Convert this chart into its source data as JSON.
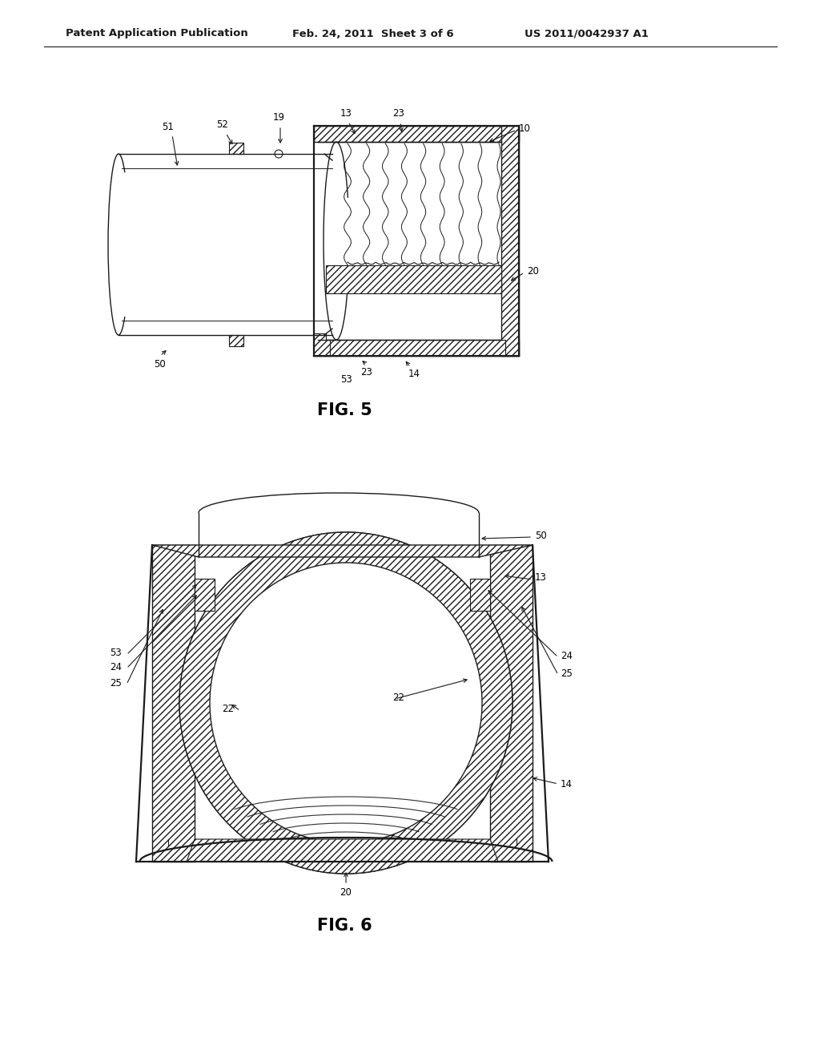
{
  "header_left": "Patent Application Publication",
  "header_center": "Feb. 24, 2011  Sheet 3 of 6",
  "header_right": "US 2011/0042937 A1",
  "fig5_caption": "FIG. 5",
  "fig6_caption": "FIG. 6",
  "bg_color": "#ffffff",
  "line_color": "#1a1a1a",
  "header_font_size": 9.5,
  "caption_font_size": 15,
  "label_font_size": 8.5
}
